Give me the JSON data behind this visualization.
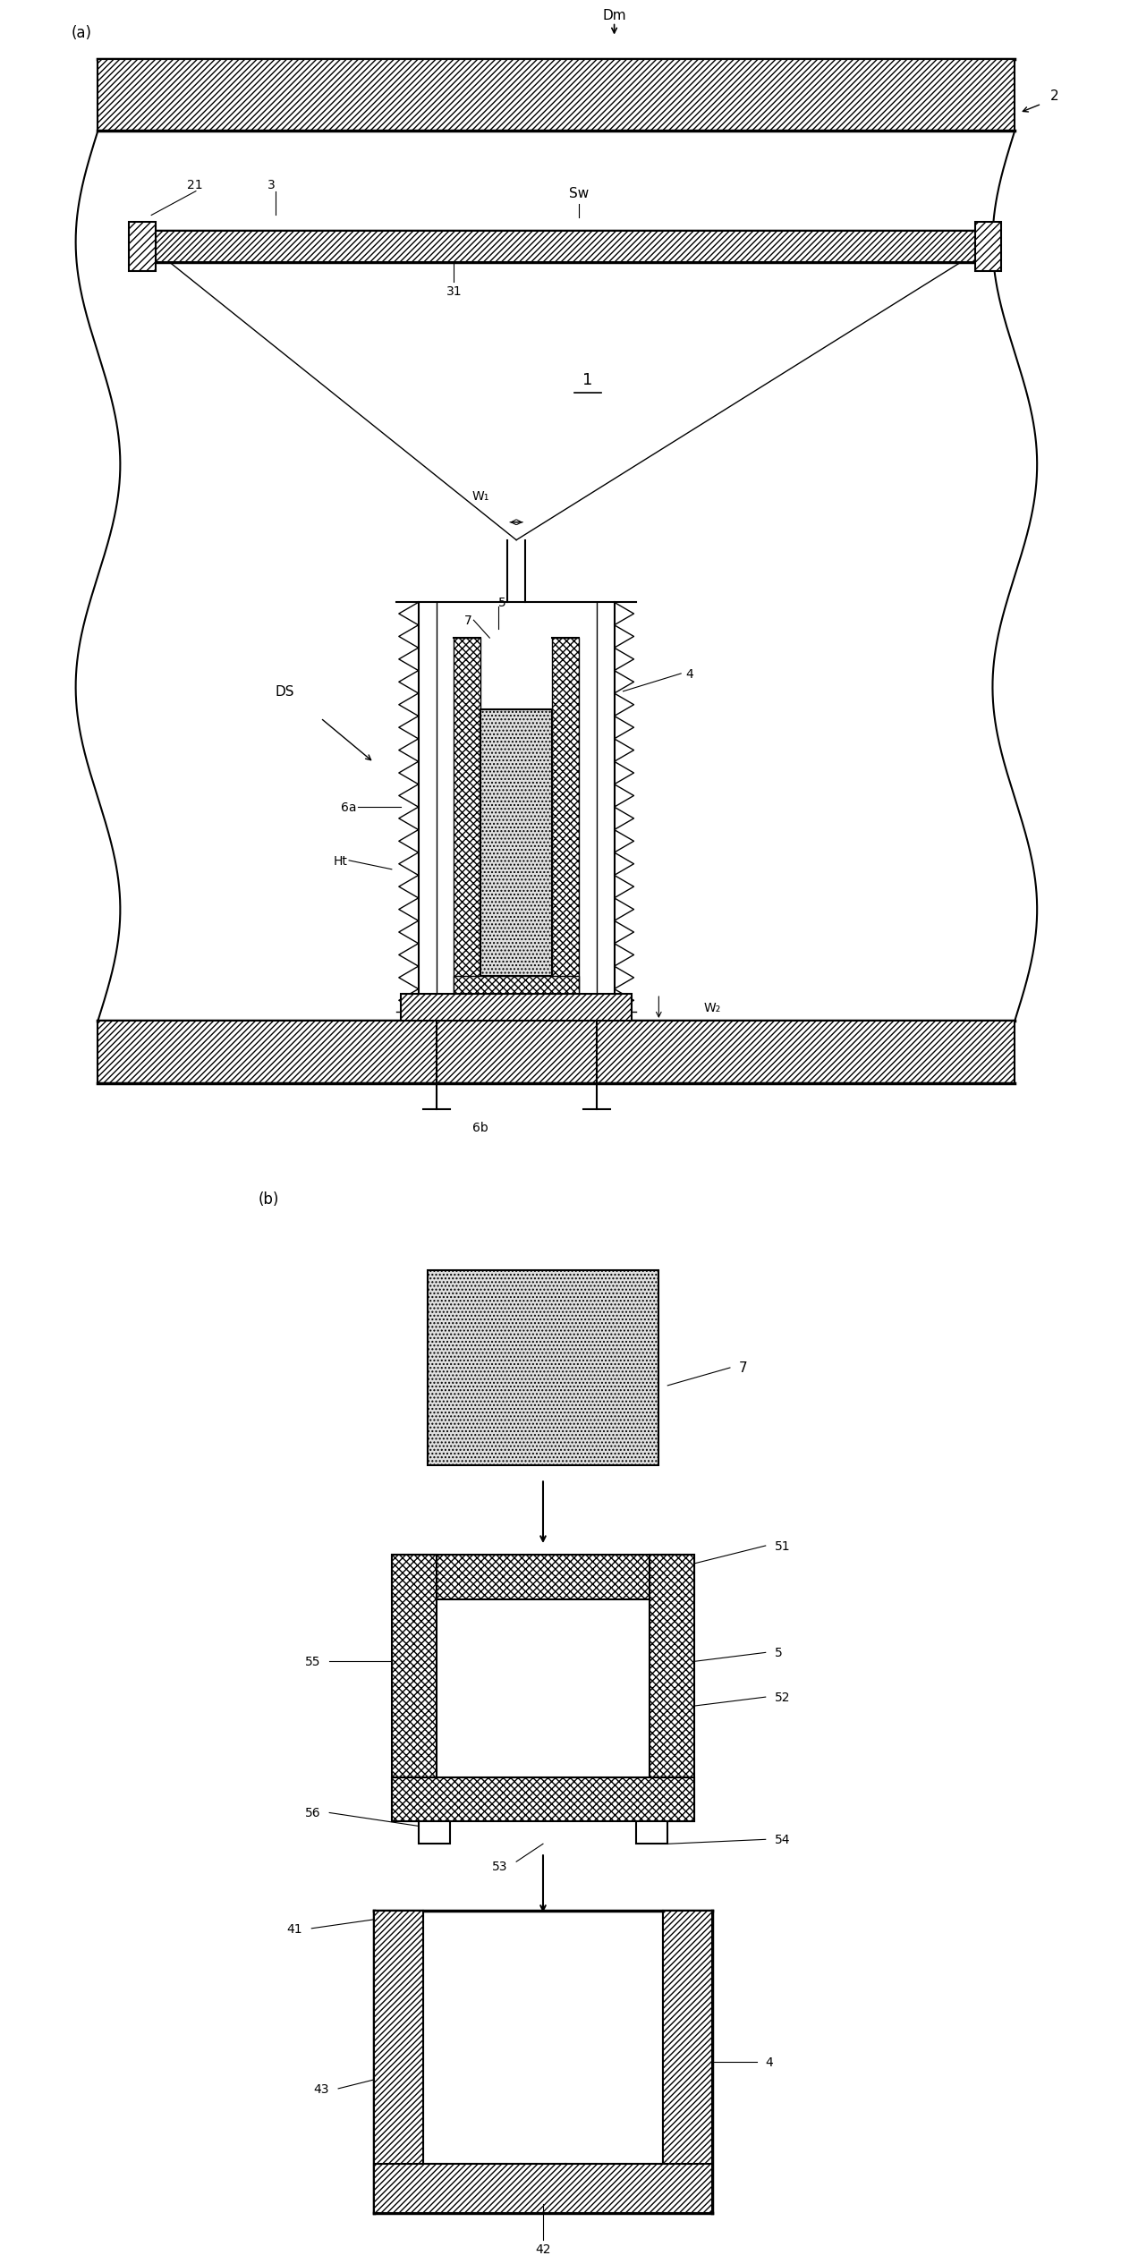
{
  "bg_color": "#ffffff",
  "fig_width": 12.4,
  "fig_height": 25.16,
  "dpi": 100
}
